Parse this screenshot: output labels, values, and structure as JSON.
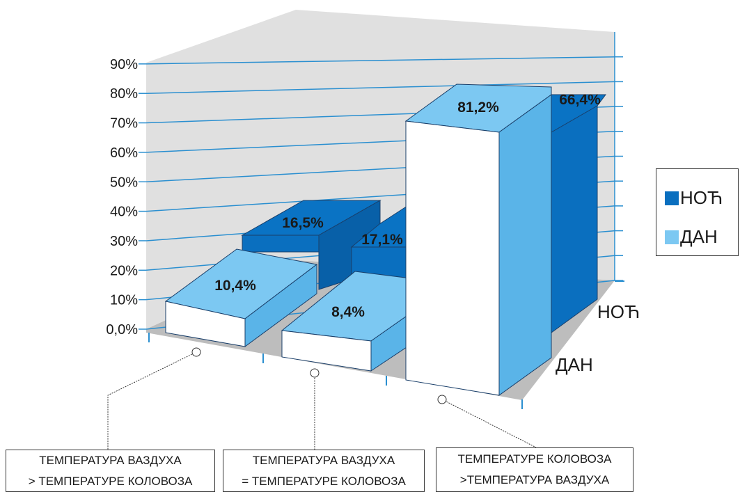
{
  "chart_data": {
    "type": "bar",
    "variant": "3d-grouped",
    "categories": [
      [
        "ТЕМПЕРАТУРА ВАЗДУХА",
        "> ТЕМПЕРАТУРЕ КОЛОВОЗА"
      ],
      [
        "ТЕМПЕРАТУРА ВАЗДУХА",
        "= ТЕМПЕРАТУРЕ КОЛОВОЗА"
      ],
      [
        "ТЕМПЕРАТУРЕ КОЛОВОЗА",
        ">ТЕМПЕРАТУРА ВАЗДУХА"
      ]
    ],
    "series": [
      {
        "name": "НОЋ",
        "values": [
          16.5,
          17.1,
          66.4
        ],
        "labels": [
          "16,5%",
          "17,1%",
          "66,4%"
        ],
        "color": "#0a6fbf"
      },
      {
        "name": "ДАН",
        "values": [
          10.4,
          8.4,
          81.2
        ],
        "labels": [
          "10,4%",
          "8,4%",
          "81,2%"
        ],
        "color": "#7cc8f2"
      }
    ],
    "depth_labels": [
      "НОЋ",
      "ДАН"
    ],
    "y_ticks": [
      "0,0%",
      "10%",
      "20%",
      "30%",
      "40%",
      "50%",
      "60%",
      "70%",
      "80%",
      "90%"
    ],
    "ylim": [
      0,
      100
    ],
    "grid": true,
    "legend": "right"
  },
  "colors": {
    "noc_front": "#0a6fbf",
    "noc_top": "#0a73c4",
    "noc_side": "#0860a8",
    "dan_front": "#ffffff",
    "dan_top": "#7cc8f2",
    "dan_side": "#5ab4e8",
    "wall": "#e0e0e0",
    "floor": "#bdbdbd",
    "grid": "#2a8fd0"
  }
}
